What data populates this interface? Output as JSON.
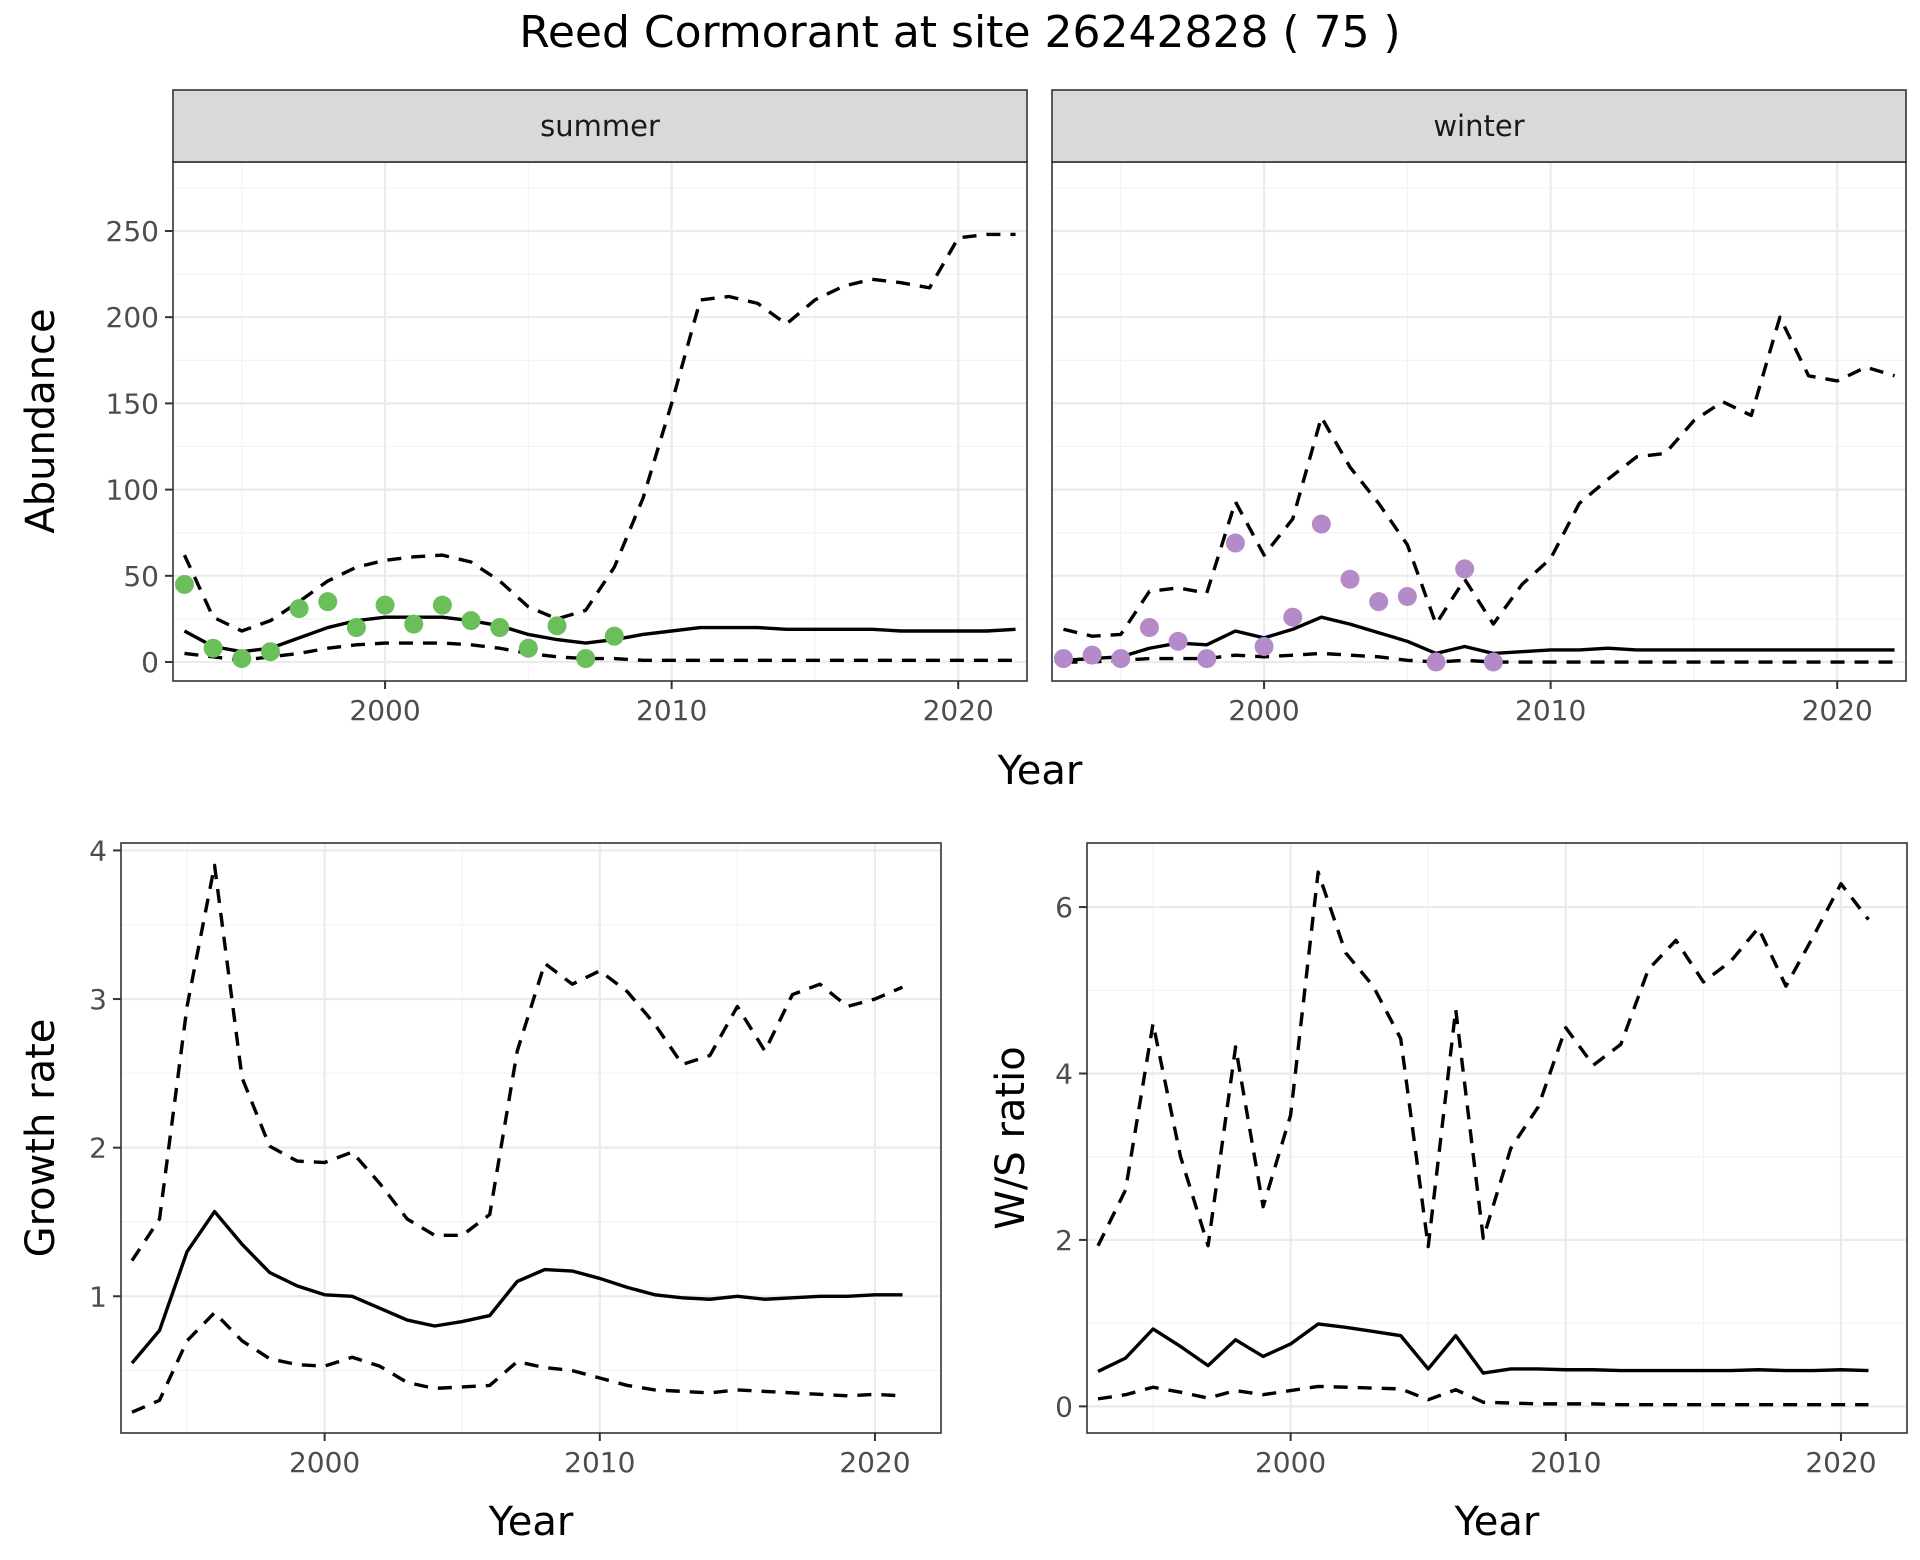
{
  "title": "Reed Cormorant at site 26242828 ( 75 )",
  "colors": {
    "summer_points": "#6abf5a",
    "winter_points": "#b48ac8",
    "lines": "#000000",
    "strip": "#d9d9d9"
  },
  "chart_data": [
    {
      "type": "line",
      "facet": "summer",
      "xlabel": "Year",
      "ylabel": "Abundance",
      "xlim": [
        1992.6,
        2022.4
      ],
      "ylim": [
        -11,
        290
      ],
      "xticks": [
        2000,
        2010,
        2020
      ],
      "yticks": [
        0,
        50,
        100,
        150,
        200,
        250
      ],
      "grid": true,
      "x": [
        1993,
        1994,
        1995,
        1996,
        1997,
        1998,
        1999,
        2000,
        2001,
        2002,
        2003,
        2004,
        2005,
        2006,
        2007,
        2008,
        2009,
        2010,
        2011,
        2012,
        2013,
        2014,
        2015,
        2016,
        2017,
        2018,
        2019,
        2020,
        2021,
        2022
      ],
      "estimate": [
        18,
        9,
        6,
        8,
        14,
        20,
        24,
        26,
        26,
        26,
        24,
        21,
        16,
        13,
        11,
        13,
        16,
        18,
        20,
        20,
        20,
        19,
        19,
        19,
        19,
        18,
        18,
        18,
        18,
        19
      ],
      "lower": [
        5,
        3,
        1,
        3,
        5,
        8,
        10,
        11,
        11,
        11,
        10,
        8,
        5,
        3,
        2,
        2,
        1,
        1,
        1,
        1,
        1,
        1,
        1,
        1,
        1,
        1,
        1,
        1,
        1,
        1
      ],
      "upper": [
        62,
        26,
        18,
        24,
        35,
        47,
        55,
        59,
        61,
        62,
        58,
        47,
        32,
        25,
        30,
        55,
        95,
        150,
        210,
        212,
        208,
        196,
        210,
        218,
        222,
        220,
        217,
        246,
        248,
        248
      ],
      "observed_x": [
        1993,
        1994,
        1995,
        1996,
        1997,
        1998,
        1999,
        2000,
        2001,
        2002,
        2003,
        2004,
        2005,
        2006,
        2007,
        2008
      ],
      "observed": [
        45,
        8,
        2,
        6,
        31,
        35,
        20,
        33,
        22,
        33,
        24,
        20,
        8,
        21,
        2,
        15
      ]
    },
    {
      "type": "line",
      "facet": "winter",
      "xlabel": "Year",
      "ylabel": "Abundance",
      "xlim": [
        1992.6,
        2022.4
      ],
      "ylim": [
        -11,
        290
      ],
      "xticks": [
        2000,
        2010,
        2020
      ],
      "yticks": [
        0,
        50,
        100,
        150,
        200,
        250
      ],
      "grid": true,
      "x": [
        1993,
        1994,
        1995,
        1996,
        1997,
        1998,
        1999,
        2000,
        2001,
        2002,
        2003,
        2004,
        2005,
        2006,
        2007,
        2008,
        2009,
        2010,
        2011,
        2012,
        2013,
        2014,
        2015,
        2016,
        2017,
        2018,
        2019,
        2020,
        2021,
        2022
      ],
      "estimate": [
        1,
        2,
        3,
        8,
        11,
        10,
        18,
        14,
        19,
        26,
        22,
        17,
        12,
        5,
        9,
        5,
        6,
        7,
        7,
        8,
        7,
        7,
        7,
        7,
        7,
        7,
        7,
        7,
        7,
        7
      ],
      "lower": [
        0,
        0,
        1,
        2,
        2,
        2,
        4,
        3,
        4,
        5,
        4,
        3,
        1,
        0,
        1,
        0,
        0,
        0,
        0,
        0,
        0,
        0,
        0,
        0,
        0,
        0,
        0,
        0,
        0,
        0
      ],
      "upper": [
        19,
        15,
        16,
        41,
        43,
        40,
        93,
        62,
        83,
        142,
        113,
        92,
        68,
        22,
        48,
        22,
        45,
        60,
        92,
        106,
        119,
        121,
        140,
        151,
        143,
        200,
        166,
        163,
        171,
        166
      ],
      "observed_x": [
        1993,
        1994,
        1995,
        1996,
        1997,
        1998,
        1999,
        2000,
        2001,
        2002,
        2003,
        2004,
        2005,
        2006,
        2007,
        2008
      ],
      "observed": [
        2,
        4,
        2,
        20,
        12,
        2,
        69,
        9,
        26,
        80,
        48,
        35,
        38,
        0,
        54,
        0
      ]
    },
    {
      "type": "line",
      "xlabel": "Year",
      "ylabel": "Growth rate",
      "xlim": [
        1992.6,
        2022.4
      ],
      "ylim": [
        0.08,
        4.05
      ],
      "xticks": [
        2000,
        2010,
        2020
      ],
      "yticks": [
        1,
        2,
        3,
        4
      ],
      "grid": true,
      "x": [
        1993,
        1994,
        1995,
        1996,
        1997,
        1998,
        1999,
        2000,
        2001,
        2002,
        2003,
        2004,
        2005,
        2006,
        2007,
        2008,
        2009,
        2010,
        2011,
        2012,
        2013,
        2014,
        2015,
        2016,
        2017,
        2018,
        2019,
        2020,
        2021
      ],
      "estimate": [
        0.55,
        0.77,
        1.3,
        1.57,
        1.35,
        1.16,
        1.07,
        1.01,
        1.0,
        0.92,
        0.84,
        0.8,
        0.83,
        0.87,
        1.1,
        1.18,
        1.17,
        1.12,
        1.06,
        1.01,
        0.99,
        0.98,
        1.0,
        0.98,
        0.99,
        1.0,
        1.0,
        1.01,
        1.01
      ],
      "lower": [
        0.22,
        0.3,
        0.7,
        0.89,
        0.7,
        0.58,
        0.54,
        0.53,
        0.59,
        0.53,
        0.42,
        0.38,
        0.39,
        0.4,
        0.56,
        0.52,
        0.5,
        0.45,
        0.4,
        0.37,
        0.36,
        0.35,
        0.37,
        0.36,
        0.35,
        0.34,
        0.33,
        0.34,
        0.33
      ],
      "upper": [
        1.24,
        1.52,
        2.95,
        3.9,
        2.47,
        2.01,
        1.91,
        1.9,
        1.97,
        1.76,
        1.52,
        1.41,
        1.41,
        1.55,
        2.65,
        3.24,
        3.1,
        3.19,
        3.05,
        2.83,
        2.56,
        2.62,
        2.95,
        2.65,
        3.03,
        3.1,
        2.95,
        3.0,
        3.08
      ]
    },
    {
      "type": "line",
      "xlabel": "Year",
      "ylabel": "W/S ratio",
      "xlim": [
        1992.6,
        2022.4
      ],
      "ylim": [
        -0.32,
        6.77
      ],
      "xticks": [
        2000,
        2010,
        2020
      ],
      "yticks": [
        0,
        2,
        4,
        6
      ],
      "grid": true,
      "x": [
        1993,
        1994,
        1995,
        1996,
        1997,
        1998,
        1999,
        2000,
        2001,
        2002,
        2003,
        2004,
        2005,
        2006,
        2007,
        2008,
        2009,
        2010,
        2011,
        2012,
        2013,
        2014,
        2015,
        2016,
        2017,
        2018,
        2019,
        2020,
        2021
      ],
      "estimate": [
        0.42,
        0.58,
        0.93,
        0.72,
        0.49,
        0.8,
        0.6,
        0.75,
        0.99,
        0.95,
        0.9,
        0.85,
        0.45,
        0.85,
        0.4,
        0.45,
        0.45,
        0.44,
        0.44,
        0.43,
        0.43,
        0.43,
        0.43,
        0.43,
        0.44,
        0.43,
        0.43,
        0.44,
        0.43
      ],
      "lower": [
        0.09,
        0.14,
        0.23,
        0.17,
        0.1,
        0.19,
        0.14,
        0.19,
        0.24,
        0.23,
        0.22,
        0.21,
        0.08,
        0.2,
        0.05,
        0.04,
        0.03,
        0.03,
        0.03,
        0.02,
        0.02,
        0.02,
        0.02,
        0.02,
        0.02,
        0.02,
        0.02,
        0.02,
        0.02
      ],
      "upper": [
        1.93,
        2.6,
        4.6,
        3.0,
        1.93,
        4.32,
        2.4,
        3.5,
        6.42,
        5.45,
        5.05,
        4.42,
        1.92,
        4.77,
        2.02,
        3.1,
        3.6,
        4.55,
        4.1,
        4.35,
        5.25,
        5.6,
        5.1,
        5.35,
        5.75,
        5.05,
        5.65,
        6.28,
        5.85
      ]
    }
  ]
}
